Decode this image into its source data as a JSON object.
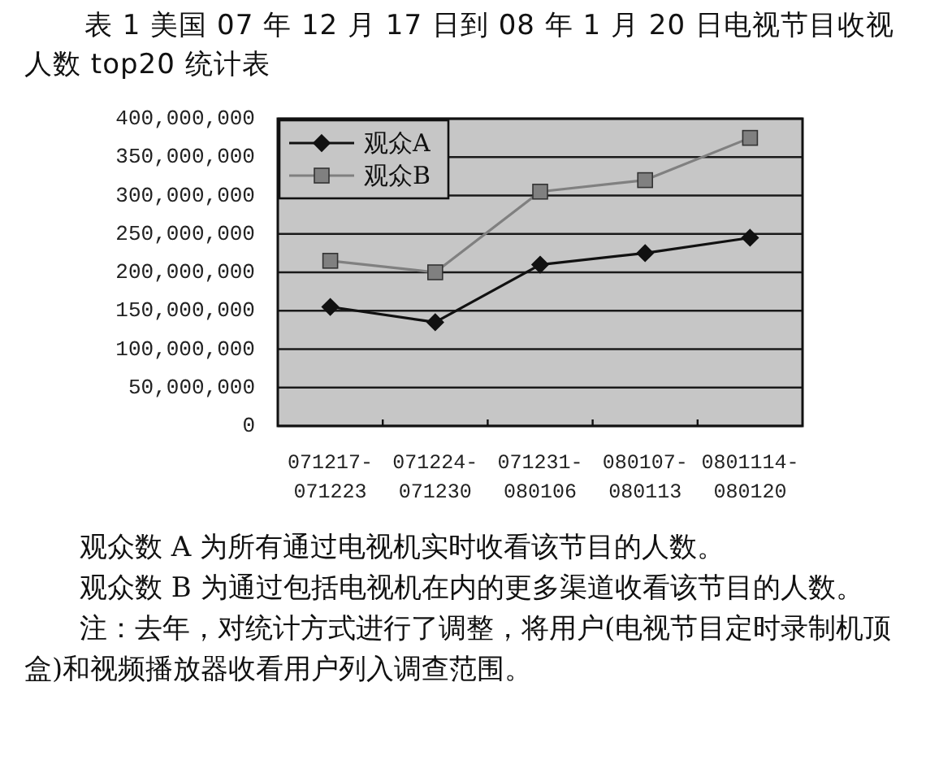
{
  "chart_data": {
    "type": "line",
    "title": "表 1  美国 07 年 12 月 17 日到 08 年 1 月 20 日电视节目收视人数 top20 统计表",
    "categories": [
      "071217-071223",
      "071224-071230",
      "071231-080106",
      "080107-080113",
      "0801114-080120"
    ],
    "series": [
      {
        "name": "观众A",
        "color": "#111111",
        "marker": "diamond",
        "values": [
          155000000,
          135000000,
          210000000,
          225000000,
          245000000
        ]
      },
      {
        "name": "观众B",
        "color": "#808080",
        "marker": "square",
        "values": [
          215000000,
          200000000,
          305000000,
          320000000,
          375000000
        ]
      }
    ],
    "ylim": [
      0,
      400000000
    ],
    "yticks": [
      {
        "value": 0,
        "label": "0"
      },
      {
        "value": 50000000,
        "label": "50,000,000"
      },
      {
        "value": 100000000,
        "label": "100,000,000"
      },
      {
        "value": 150000000,
        "label": "150,000,000"
      },
      {
        "value": 200000000,
        "label": "200,000,000"
      },
      {
        "value": 250000000,
        "label": "250,000,000"
      },
      {
        "value": 300000000,
        "label": "300,000,000"
      },
      {
        "value": 350000000,
        "label": "350,000,000"
      },
      {
        "value": 400000000,
        "label": "400,000,000"
      }
    ],
    "grid": "y",
    "legend": "top left",
    "annotations": [
      "观众数 A 为所有通过电视机实时收看该节目的人数。",
      "观众数 B 为通过包括电视机在内的更多渠道收看该节目的人数。",
      "注：去年，对统计方式进行了调整，将用户(电视节目定时录制机顶盒)和视频播放器收看用户列入调查范围。"
    ]
  }
}
